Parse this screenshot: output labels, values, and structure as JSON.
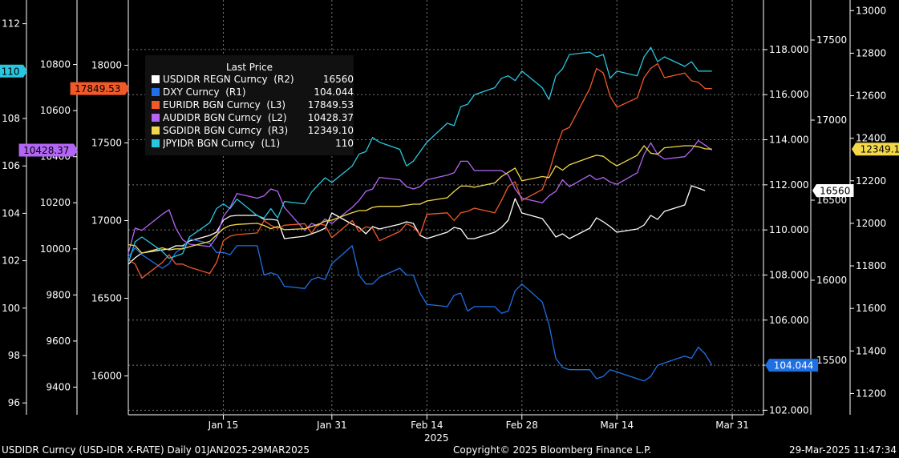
{
  "footer": {
    "left": "USDIDR Curncy (USD-IDR X-RATE)  Daily 01JAN2025-29MAR2025",
    "center": "Copyright© 2025 Bloomberg Finance L.P.",
    "right": "29-Mar-2025 11:47:34"
  },
  "chart_data": {
    "type": "line",
    "x_axis": {
      "ticks": [
        "Jan 15",
        "Jan 31",
        "Feb 14",
        "Feb 28",
        "Mar 14",
        "Mar 31"
      ],
      "tick_dates": [
        "2025-01-15",
        "2025-01-31",
        "2025-02-14",
        "2025-02-28",
        "2025-03-14",
        "2025-03-31"
      ],
      "year_label": "2025",
      "range": [
        "2025-01-01",
        "2025-04-02"
      ]
    },
    "axes": {
      "L1": {
        "range": [
          95.5,
          113
        ],
        "ticks": [
          96,
          98,
          100,
          102,
          104,
          106,
          108,
          110,
          112
        ]
      },
      "L2": {
        "range": [
          9280,
          11080
        ],
        "ticks": [
          9400,
          9600,
          9800,
          10000,
          10200,
          10400,
          10600,
          10800
        ]
      },
      "L3": {
        "range": [
          15750,
          18420
        ],
        "ticks": [
          16000,
          16500,
          17000,
          17500,
          18000
        ]
      },
      "R1": {
        "range": [
          101.8,
          120.2
        ],
        "ticks": [
          102.0,
          104.0,
          106.0,
          108.0,
          110.0,
          112.0,
          114.0,
          116.0,
          118.0
        ],
        "tick_labels": [
          "102.000",
          "104.000",
          "106.000",
          "108.000",
          "110.000",
          "112.000",
          "114.000",
          "116.000",
          "118.000"
        ]
      },
      "R2": {
        "range": [
          15160,
          17750
        ],
        "ticks": [
          15500,
          16000,
          16500,
          17000,
          17500
        ]
      },
      "R3": {
        "range": [
          11100,
          13050
        ],
        "ticks": [
          11200,
          11400,
          11600,
          11800,
          12000,
          12200,
          12400,
          12600,
          12800,
          13000
        ]
      }
    },
    "legend": {
      "title": "Last Price",
      "placement": "top-left"
    },
    "grid": true,
    "series": [
      {
        "name": "USDIDR REGN Curncy",
        "axis": "R2",
        "color": "#ffffff",
        "last_value": "16560",
        "last_label": "16560",
        "x": [
          "2025-01-01",
          "2025-01-02",
          "2025-01-03",
          "2025-01-06",
          "2025-01-07",
          "2025-01-08",
          "2025-01-09",
          "2025-01-10",
          "2025-01-13",
          "2025-01-14",
          "2025-01-15",
          "2025-01-16",
          "2025-01-17",
          "2025-01-20",
          "2025-01-21",
          "2025-01-22",
          "2025-01-23",
          "2025-01-24",
          "2025-01-27",
          "2025-01-28",
          "2025-01-29",
          "2025-01-30",
          "2025-01-31",
          "2025-02-03",
          "2025-02-04",
          "2025-02-05",
          "2025-02-06",
          "2025-02-07",
          "2025-02-10",
          "2025-02-11",
          "2025-02-12",
          "2025-02-13",
          "2025-02-14",
          "2025-02-17",
          "2025-02-18",
          "2025-02-19",
          "2025-02-20",
          "2025-02-21",
          "2025-02-24",
          "2025-02-25",
          "2025-02-26",
          "2025-02-27",
          "2025-02-28",
          "2025-03-03",
          "2025-03-04",
          "2025-03-05",
          "2025-03-06",
          "2025-03-07",
          "2025-03-10",
          "2025-03-11",
          "2025-03-12",
          "2025-03-13",
          "2025-03-14",
          "2025-03-17",
          "2025-03-18",
          "2025-03-19",
          "2025-03-20",
          "2025-03-21",
          "2025-03-24",
          "2025-03-25",
          "2025-03-26",
          "2025-03-27"
        ],
        "y": [
          16100,
          16140,
          16170,
          16190,
          16195,
          16215,
          16215,
          16245,
          16280,
          16300,
          16375,
          16400,
          16405,
          16405,
          16380,
          16380,
          16375,
          16260,
          16275,
          16290,
          16305,
          16325,
          16420,
          16350,
          16330,
          16290,
          16335,
          16320,
          16350,
          16365,
          16355,
          16280,
          16260,
          16300,
          16330,
          16320,
          16260,
          16260,
          16300,
          16330,
          16375,
          16510,
          16420,
          16385,
          16330,
          16270,
          16290,
          16260,
          16325,
          16390,
          16365,
          16335,
          16300,
          16320,
          16345,
          16405,
          16380,
          16430,
          16470,
          16590,
          16575,
          16560
        ]
      },
      {
        "name": "DXY Curncy",
        "axis": "R1",
        "color": "#1f6fe5",
        "last_value": "104.044",
        "last_label": "104.044",
        "x": [
          "2025-01-01",
          "2025-01-02",
          "2025-01-03",
          "2025-01-06",
          "2025-01-07",
          "2025-01-08",
          "2025-01-09",
          "2025-01-10",
          "2025-01-13",
          "2025-01-14",
          "2025-01-15",
          "2025-01-16",
          "2025-01-17",
          "2025-01-20",
          "2025-01-21",
          "2025-01-22",
          "2025-01-23",
          "2025-01-24",
          "2025-01-27",
          "2025-01-28",
          "2025-01-29",
          "2025-01-30",
          "2025-01-31",
          "2025-02-03",
          "2025-02-04",
          "2025-02-05",
          "2025-02-06",
          "2025-02-07",
          "2025-02-10",
          "2025-02-11",
          "2025-02-12",
          "2025-02-13",
          "2025-02-14",
          "2025-02-17",
          "2025-02-18",
          "2025-02-19",
          "2025-02-20",
          "2025-02-21",
          "2025-02-24",
          "2025-02-25",
          "2025-02-26",
          "2025-02-27",
          "2025-02-28",
          "2025-03-03",
          "2025-03-04",
          "2025-03-05",
          "2025-03-06",
          "2025-03-07",
          "2025-03-10",
          "2025-03-11",
          "2025-03-12",
          "2025-03-13",
          "2025-03-14",
          "2025-03-17",
          "2025-03-18",
          "2025-03-19",
          "2025-03-20",
          "2025-03-21",
          "2025-03-24",
          "2025-03-25",
          "2025-03-26",
          "2025-03-27",
          "2025-03-28"
        ],
        "y": [
          108.8,
          109.2,
          108.9,
          108.3,
          108.5,
          109.0,
          109.2,
          109.6,
          109.4,
          109.0,
          109.0,
          108.9,
          109.3,
          109.3,
          108.0,
          108.1,
          108.0,
          107.5,
          107.4,
          107.8,
          107.9,
          107.8,
          108.5,
          109.3,
          108.0,
          107.6,
          107.6,
          107.9,
          108.3,
          108.0,
          108.0,
          107.2,
          106.7,
          106.6,
          107.1,
          107.2,
          106.4,
          106.6,
          106.6,
          106.3,
          106.4,
          107.3,
          107.6,
          106.8,
          105.8,
          104.3,
          103.9,
          103.8,
          103.8,
          103.4,
          103.5,
          103.8,
          103.7,
          103.4,
          103.3,
          103.5,
          104.0,
          104.1,
          104.4,
          104.3,
          104.8,
          104.5,
          104.0
        ]
      },
      {
        "name": "EURIDR BGN Curncy",
        "axis": "L3",
        "color": "#f05a28",
        "last_value": "17849.53",
        "last_label": "17849.53",
        "x": [
          "2025-01-01",
          "2025-01-02",
          "2025-01-03",
          "2025-01-06",
          "2025-01-07",
          "2025-01-08",
          "2025-01-09",
          "2025-01-10",
          "2025-01-13",
          "2025-01-14",
          "2025-01-15",
          "2025-01-16",
          "2025-01-17",
          "2025-01-20",
          "2025-01-21",
          "2025-01-22",
          "2025-01-23",
          "2025-01-24",
          "2025-01-27",
          "2025-01-28",
          "2025-01-29",
          "2025-01-30",
          "2025-01-31",
          "2025-02-03",
          "2025-02-04",
          "2025-02-05",
          "2025-02-06",
          "2025-02-07",
          "2025-02-10",
          "2025-02-11",
          "2025-02-12",
          "2025-02-13",
          "2025-02-14",
          "2025-02-17",
          "2025-02-18",
          "2025-02-19",
          "2025-02-20",
          "2025-02-21",
          "2025-02-24",
          "2025-02-25",
          "2025-02-26",
          "2025-02-27",
          "2025-02-28",
          "2025-03-03",
          "2025-03-04",
          "2025-03-05",
          "2025-03-06",
          "2025-03-07",
          "2025-03-10",
          "2025-03-11",
          "2025-03-12",
          "2025-03-13",
          "2025-03-14",
          "2025-03-17",
          "2025-03-18",
          "2025-03-19",
          "2025-03-20",
          "2025-03-21",
          "2025-03-24",
          "2025-03-25",
          "2025-03-26",
          "2025-03-27",
          "2025-03-28"
        ],
        "y": [
          16750,
          16720,
          16630,
          16730,
          16780,
          16720,
          16720,
          16700,
          16660,
          16730,
          16870,
          16900,
          16910,
          16920,
          17000,
          16970,
          16950,
          16970,
          16980,
          16920,
          16980,
          16970,
          16890,
          17000,
          16930,
          16960,
          16950,
          16870,
          16930,
          16980,
          16960,
          16910,
          17040,
          17050,
          17000,
          17050,
          17060,
          17080,
          17050,
          17130,
          17220,
          17250,
          17130,
          17200,
          17310,
          17460,
          17580,
          17600,
          17850,
          17980,
          17950,
          17800,
          17730,
          17790,
          17920,
          17980,
          18010,
          17920,
          17950,
          17900,
          17890,
          17850,
          17849.53
        ]
      },
      {
        "name": "AUDIDR BGN Curncy",
        "axis": "L2",
        "color": "#b366f5",
        "last_value": "10428.37",
        "last_label": "10428.37",
        "x": [
          "2025-01-01",
          "2025-01-02",
          "2025-01-03",
          "2025-01-06",
          "2025-01-07",
          "2025-01-08",
          "2025-01-09",
          "2025-01-10",
          "2025-01-13",
          "2025-01-14",
          "2025-01-15",
          "2025-01-16",
          "2025-01-17",
          "2025-01-20",
          "2025-01-21",
          "2025-01-22",
          "2025-01-23",
          "2025-01-24",
          "2025-01-27",
          "2025-01-28",
          "2025-01-29",
          "2025-01-30",
          "2025-01-31",
          "2025-02-03",
          "2025-02-04",
          "2025-02-05",
          "2025-02-06",
          "2025-02-07",
          "2025-02-10",
          "2025-02-11",
          "2025-02-12",
          "2025-02-13",
          "2025-02-14",
          "2025-02-17",
          "2025-02-18",
          "2025-02-19",
          "2025-02-20",
          "2025-02-21",
          "2025-02-24",
          "2025-02-25",
          "2025-02-26",
          "2025-02-27",
          "2025-02-28",
          "2025-03-03",
          "2025-03-04",
          "2025-03-05",
          "2025-03-06",
          "2025-03-07",
          "2025-03-10",
          "2025-03-11",
          "2025-03-12",
          "2025-03-13",
          "2025-03-14",
          "2025-03-17",
          "2025-03-18",
          "2025-03-19",
          "2025-03-20",
          "2025-03-21",
          "2025-03-24",
          "2025-03-25",
          "2025-03-26",
          "2025-03-27",
          "2025-03-28"
        ],
        "y": [
          9980,
          10090,
          10080,
          10150,
          10170,
          10090,
          10040,
          10020,
          10010,
          10050,
          10140,
          10180,
          10240,
          10220,
          10230,
          10260,
          10250,
          10180,
          10080,
          10110,
          10100,
          10130,
          10110,
          10180,
          10210,
          10250,
          10260,
          10310,
          10300,
          10270,
          10260,
          10270,
          10300,
          10320,
          10330,
          10380,
          10380,
          10340,
          10340,
          10340,
          10320,
          10260,
          10220,
          10200,
          10230,
          10250,
          10300,
          10270,
          10320,
          10300,
          10310,
          10290,
          10280,
          10330,
          10410,
          10460,
          10410,
          10390,
          10400,
          10430,
          10470,
          10450,
          10428.37
        ]
      },
      {
        "name": "SGDIDR BGN Curncy",
        "axis": "R3",
        "color": "#f2d84a",
        "last_value": "12349.10",
        "last_label": "12349.10",
        "x": [
          "2025-01-01",
          "2025-01-02",
          "2025-01-03",
          "2025-01-06",
          "2025-01-07",
          "2025-01-08",
          "2025-01-09",
          "2025-01-10",
          "2025-01-13",
          "2025-01-14",
          "2025-01-15",
          "2025-01-16",
          "2025-01-17",
          "2025-01-20",
          "2025-01-21",
          "2025-01-22",
          "2025-01-23",
          "2025-01-24",
          "2025-01-27",
          "2025-01-28",
          "2025-01-29",
          "2025-01-30",
          "2025-01-31",
          "2025-02-03",
          "2025-02-04",
          "2025-02-05",
          "2025-02-06",
          "2025-02-07",
          "2025-02-10",
          "2025-02-11",
          "2025-02-12",
          "2025-02-13",
          "2025-02-14",
          "2025-02-17",
          "2025-02-18",
          "2025-02-19",
          "2025-02-20",
          "2025-02-21",
          "2025-02-24",
          "2025-02-25",
          "2025-02-26",
          "2025-02-27",
          "2025-02-28",
          "2025-03-03",
          "2025-03-04",
          "2025-03-05",
          "2025-03-06",
          "2025-03-07",
          "2025-03-10",
          "2025-03-11",
          "2025-03-12",
          "2025-03-13",
          "2025-03-14",
          "2025-03-17",
          "2025-03-18",
          "2025-03-19",
          "2025-03-20",
          "2025-03-21",
          "2025-03-24",
          "2025-03-25",
          "2025-03-26",
          "2025-03-27",
          "2025-03-28"
        ],
        "y": [
          11900,
          11895,
          11860,
          11885,
          11875,
          11880,
          11880,
          11890,
          11915,
          11945,
          11975,
          11990,
          11995,
          12000,
          11990,
          11975,
          11985,
          11970,
          11975,
          11985,
          11995,
          12010,
          12015,
          12050,
          12060,
          12060,
          12075,
          12080,
          12080,
          12085,
          12090,
          12090,
          12105,
          12120,
          12150,
          12175,
          12175,
          12170,
          12190,
          12220,
          12240,
          12260,
          12200,
          12220,
          12215,
          12270,
          12250,
          12275,
          12310,
          12320,
          12315,
          12290,
          12270,
          12320,
          12365,
          12330,
          12325,
          12355,
          12365,
          12365,
          12360,
          12350,
          12349.1
        ]
      },
      {
        "name": "JPYIDR BGN Curncy",
        "axis": "L1",
        "color": "#29c6e0",
        "last_value": "110",
        "last_label": "110",
        "x": [
          "2025-01-01",
          "2025-01-02",
          "2025-01-03",
          "2025-01-06",
          "2025-01-07",
          "2025-01-08",
          "2025-01-09",
          "2025-01-10",
          "2025-01-13",
          "2025-01-14",
          "2025-01-15",
          "2025-01-16",
          "2025-01-17",
          "2025-01-20",
          "2025-01-21",
          "2025-01-22",
          "2025-01-23",
          "2025-01-24",
          "2025-01-27",
          "2025-01-28",
          "2025-01-29",
          "2025-01-30",
          "2025-01-31",
          "2025-02-03",
          "2025-02-04",
          "2025-02-05",
          "2025-02-06",
          "2025-02-07",
          "2025-02-10",
          "2025-02-11",
          "2025-02-12",
          "2025-02-13",
          "2025-02-14",
          "2025-02-17",
          "2025-02-18",
          "2025-02-19",
          "2025-02-20",
          "2025-02-21",
          "2025-02-24",
          "2025-02-25",
          "2025-02-26",
          "2025-02-27",
          "2025-02-28",
          "2025-03-03",
          "2025-03-04",
          "2025-03-05",
          "2025-03-06",
          "2025-03-07",
          "2025-03-10",
          "2025-03-11",
          "2025-03-12",
          "2025-03-13",
          "2025-03-14",
          "2025-03-17",
          "2025-03-18",
          "2025-03-19",
          "2025-03-20",
          "2025-03-21",
          "2025-03-24",
          "2025-03-25",
          "2025-03-26",
          "2025-03-27",
          "2025-03-28"
        ],
        "y": [
          101.9,
          102.8,
          103.0,
          102.4,
          102.1,
          102.2,
          102.3,
          103.0,
          103.6,
          104.2,
          104.4,
          104.2,
          104.6,
          103.9,
          103.8,
          104.2,
          103.8,
          104.5,
          104.4,
          104.9,
          105.2,
          105.5,
          105.3,
          106.0,
          106.5,
          106.6,
          107.2,
          107.0,
          106.7,
          106.0,
          106.2,
          106.6,
          107.0,
          107.8,
          107.7,
          108.5,
          108.6,
          109.0,
          109.3,
          109.7,
          109.8,
          109.6,
          110.0,
          109.3,
          108.8,
          109.8,
          110.1,
          110.7,
          110.8,
          110.6,
          110.7,
          109.7,
          110.0,
          109.8,
          110.6,
          111.0,
          110.4,
          110.6,
          110.2,
          110.4,
          110.0,
          110.0,
          110.0
        ]
      }
    ]
  }
}
